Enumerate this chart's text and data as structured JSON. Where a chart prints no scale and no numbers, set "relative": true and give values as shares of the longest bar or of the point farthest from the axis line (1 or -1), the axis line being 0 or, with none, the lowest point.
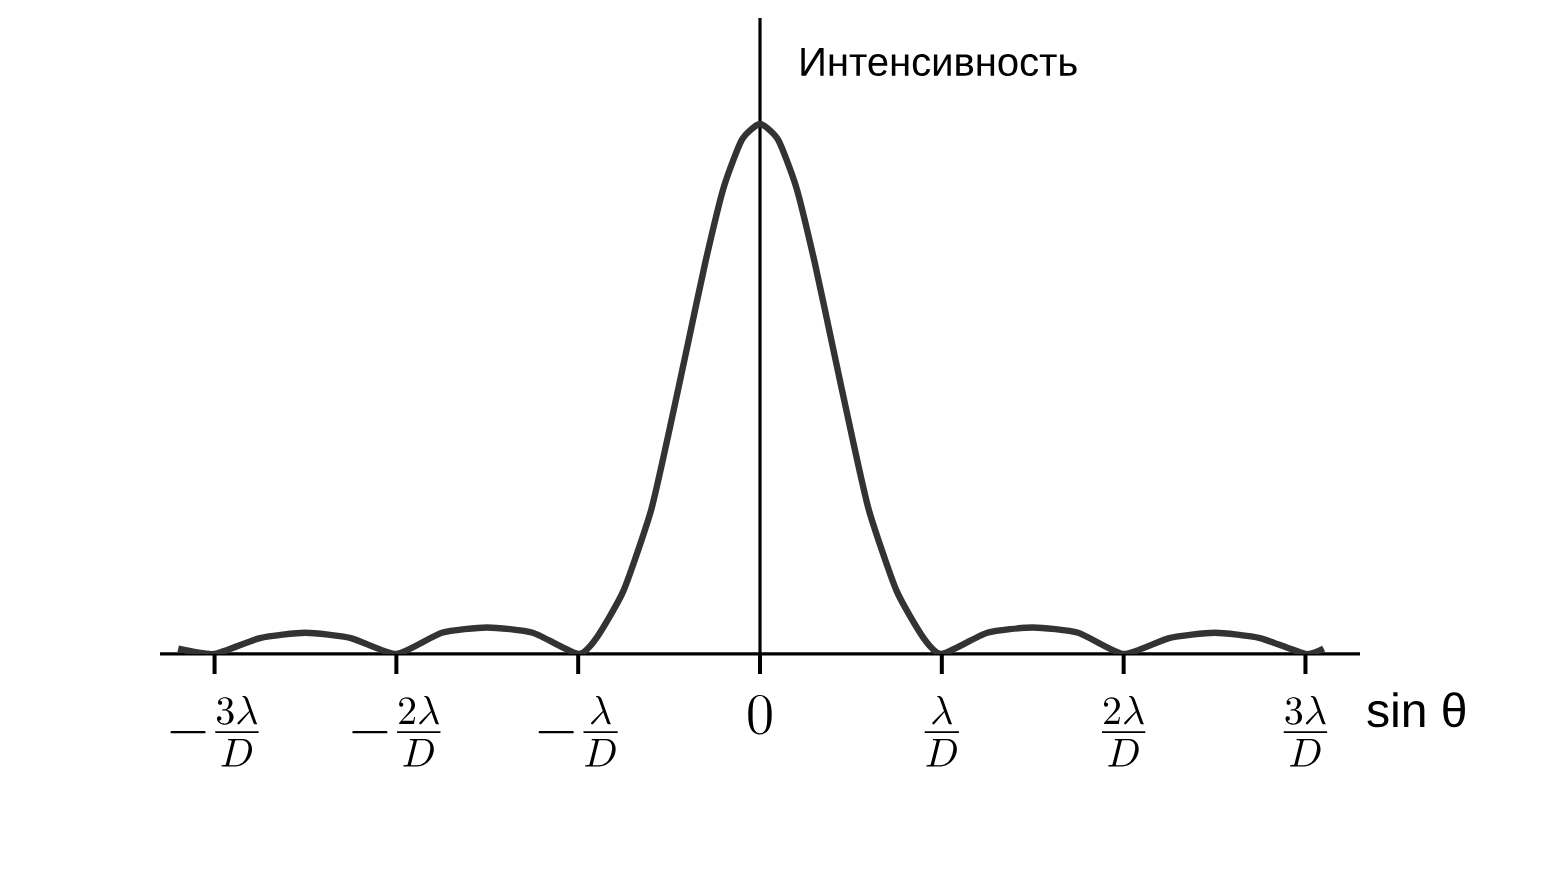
{
  "chart_data": {
    "type": "line",
    "relative": true,
    "xlabel": "sin θ",
    "ylabel": "Интенсивность",
    "marker": "none",
    "line_style": "solid",
    "xlim": [
      -3.3,
      3.3
    ],
    "xticks": [
      {
        "value": -3,
        "label": "-\\frac{3\\lambda}{D}"
      },
      {
        "value": -2,
        "label": "-\\frac{2\\lambda}{D}"
      },
      {
        "value": -1,
        "label": "-\\frac{\\lambda}{D}"
      },
      {
        "value": 0,
        "label": "0"
      },
      {
        "value": 1,
        "label": "\\frac{\\lambda}{D}"
      },
      {
        "value": 2,
        "label": "\\frac{2\\lambda}{D}"
      },
      {
        "value": 3,
        "label": "\\frac{3\\lambda}{D}"
      }
    ],
    "series": [
      {
        "color": "#333333",
        "x": [
          -3.2,
          -3,
          -2.75,
          -2.5,
          -2.25,
          -2,
          -1.75,
          -1.5,
          -1.25,
          -1,
          -0.9,
          -0.75,
          -0.6,
          -0.5,
          -0.4,
          -0.3,
          -0.2,
          -0.1,
          0,
          0.1,
          0.2,
          0.3,
          0.4,
          0.5,
          0.6,
          0.75,
          0.9,
          1,
          1.25,
          1.5,
          1.75,
          2,
          2.25,
          2.5,
          2.75,
          3,
          3.1
        ],
        "values": [
          0.01,
          0,
          0.03,
          0.04,
          0.03,
          0,
          0.04,
          0.05,
          0.04,
          0,
          0.03,
          0.12,
          0.27,
          0.42,
          0.58,
          0.74,
          0.88,
          0.97,
          1,
          0.97,
          0.88,
          0.74,
          0.58,
          0.42,
          0.27,
          0.12,
          0.03,
          0,
          0.04,
          0.05,
          0.04,
          0,
          0.03,
          0.04,
          0.03,
          0,
          0.01
        ]
      }
    ]
  }
}
